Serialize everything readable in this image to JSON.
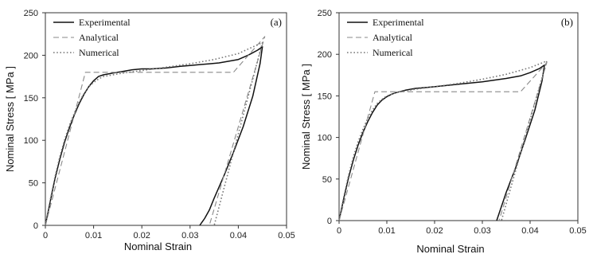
{
  "colors": {
    "experimental": "#111111",
    "analytical": "#8a8a8a",
    "numerical": "#777777"
  },
  "chart_data": [
    {
      "type": "line",
      "panel_label": "(a)",
      "xlabel": "Nominal Strain",
      "ylabel": "Nominal Stress [ MPa ]",
      "xlim": [
        0,
        0.05
      ],
      "ylim": [
        0,
        250
      ],
      "xticks": [
        "0",
        "0.01",
        "0.02",
        "0.03",
        "0.04",
        "0.05"
      ],
      "yticks": [
        "0",
        "50",
        "100",
        "150",
        "200",
        "250"
      ],
      "legend_position": "top-left",
      "series": [
        {
          "name": "Experimental",
          "style": "solid",
          "x": [
            0,
            0.001,
            0.002,
            0.003,
            0.004,
            0.005,
            0.006,
            0.007,
            0.008,
            0.009,
            0.01,
            0.011,
            0.012,
            0.013,
            0.014,
            0.016,
            0.018,
            0.02,
            0.022,
            0.025,
            0.028,
            0.03,
            0.032,
            0.034,
            0.036,
            0.038,
            0.04,
            0.042,
            0.043,
            0.044,
            0.045,
            0.0445,
            0.043,
            0.041,
            0.039,
            0.037,
            0.035,
            0.034,
            0.033,
            0.032
          ],
          "y": [
            0,
            28,
            55,
            78,
            98,
            115,
            130,
            143,
            154,
            163,
            170,
            175,
            177,
            178,
            179,
            181,
            183,
            184,
            184,
            185,
            187,
            188,
            189,
            190,
            191,
            193,
            195,
            200,
            203,
            206,
            210,
            190,
            152,
            116,
            86,
            58,
            32,
            18,
            8,
            0
          ]
        },
        {
          "name": "Analytical",
          "style": "dashed",
          "x": [
            0,
            0.0083,
            0.039,
            0.0455,
            0.034
          ],
          "y": [
            0,
            180,
            180,
            222,
            0
          ]
        },
        {
          "name": "Numerical",
          "style": "dotted",
          "x": [
            0,
            0.001,
            0.002,
            0.003,
            0.004,
            0.005,
            0.006,
            0.007,
            0.008,
            0.009,
            0.01,
            0.011,
            0.012,
            0.014,
            0.016,
            0.02,
            0.025,
            0.03,
            0.035,
            0.04,
            0.045,
            0.035
          ],
          "y": [
            0,
            30,
            57,
            81,
            101,
            118,
            132,
            145,
            155,
            163,
            168,
            172,
            175,
            177,
            179,
            182,
            186,
            190,
            195,
            202,
            215,
            0
          ]
        }
      ]
    },
    {
      "type": "line",
      "panel_label": "(b)",
      "xlabel": "Nominal Strain",
      "ylabel": "Nominal Stress [ MPa ]",
      "xlim": [
        0,
        0.05
      ],
      "ylim": [
        0,
        250
      ],
      "xticks": [
        "0",
        "0.01",
        "0.02",
        "0.03",
        "0.04",
        "0.05"
      ],
      "yticks": [
        "0",
        "50",
        "100",
        "150",
        "200",
        "250"
      ],
      "legend_position": "top-left",
      "series": [
        {
          "name": "Experimental",
          "style": "solid",
          "x": [
            0,
            0.001,
            0.002,
            0.003,
            0.004,
            0.005,
            0.006,
            0.007,
            0.008,
            0.009,
            0.01,
            0.011,
            0.012,
            0.014,
            0.016,
            0.018,
            0.02,
            0.025,
            0.03,
            0.035,
            0.038,
            0.04,
            0.042,
            0.043,
            0.0425,
            0.041,
            0.039,
            0.037,
            0.035,
            0.034,
            0.033
          ],
          "y": [
            0,
            27,
            52,
            73,
            91,
            106,
            119,
            130,
            139,
            145,
            149,
            152,
            154,
            157,
            159,
            160,
            161,
            164,
            167,
            171,
            174,
            178,
            183,
            187,
            168,
            133,
            98,
            64,
            34,
            17,
            0
          ]
        },
        {
          "name": "Analytical",
          "style": "dashed",
          "x": [
            0,
            0.0075,
            0.038,
            0.0435,
            0.0335
          ],
          "y": [
            0,
            155,
            155,
            190,
            0
          ]
        },
        {
          "name": "Numerical",
          "style": "dotted",
          "x": [
            0,
            0.001,
            0.002,
            0.003,
            0.004,
            0.005,
            0.006,
            0.007,
            0.008,
            0.009,
            0.01,
            0.011,
            0.012,
            0.014,
            0.016,
            0.02,
            0.025,
            0.03,
            0.035,
            0.04,
            0.0435,
            0.034
          ],
          "y": [
            0,
            29,
            55,
            77,
            95,
            110,
            123,
            133,
            141,
            146,
            150,
            152,
            154,
            156,
            158,
            161,
            165,
            170,
            176,
            184,
            192,
            0
          ]
        }
      ]
    }
  ]
}
